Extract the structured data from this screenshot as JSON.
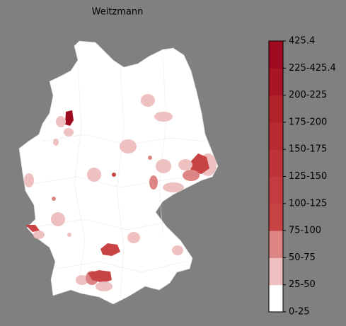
{
  "title": "Weitzmann",
  "colorbar": {
    "labels": [
      "0-25",
      "25-50",
      "50-75",
      "75-100",
      "100-125",
      "125-150",
      "150-175",
      "175-200",
      "200-225",
      "225-425.4",
      "425.4"
    ],
    "colors": [
      "#ffffff",
      "#efc0c0",
      "#dd8485",
      "#c84444",
      "#c43c40",
      "#bf3338",
      "#b92a31",
      "#b2222b",
      "#a81525",
      "#9e0a20"
    ]
  }
}
